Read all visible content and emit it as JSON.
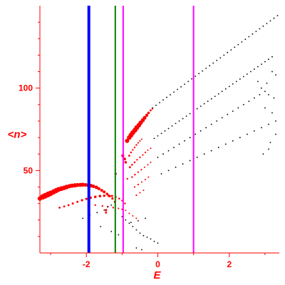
{
  "chart_data": {
    "type": "scatter",
    "title": "",
    "xlabel": "E",
    "ylabel": "<n>",
    "xlim": [
      -3.3,
      3.4
    ],
    "ylim": [
      0,
      150
    ],
    "x_ticks": [
      -2,
      0,
      2
    ],
    "y_ticks": [
      50,
      100
    ],
    "x_tick_labels": [
      "-2",
      "0",
      "2"
    ],
    "y_tick_labels": [
      "50",
      "100"
    ],
    "grid": false,
    "colors": {
      "axis": "#ff0000",
      "red_points": "#ff0000",
      "black_points": "#000000",
      "line_blue": "#0000ff",
      "line_green": "#008000",
      "line_magenta": "#ff00ff"
    },
    "vertical_lines": [
      {
        "x": -1.93,
        "color": "#0000ff",
        "width": 4
      },
      {
        "x": -1.19,
        "color": "#008000",
        "width": 2
      },
      {
        "x": -0.97,
        "color": "#ff00ff",
        "width": 2
      },
      {
        "x": 1.0,
        "color": "#ff00ff",
        "width": 2
      }
    ],
    "series": [
      {
        "style": "red",
        "points": [
          [
            -3.3,
            33.0,
            3.2
          ],
          [
            -3.22,
            34.0,
            3.8
          ],
          [
            -3.15,
            34.7,
            4.0
          ],
          [
            -3.07,
            35.5,
            4.0
          ],
          [
            -3.0,
            36.2,
            3.8
          ],
          [
            -2.92,
            37.0,
            3.6
          ],
          [
            -2.85,
            37.8,
            3.6
          ],
          [
            -2.78,
            38.5,
            3.4
          ],
          [
            -2.7,
            39.0,
            3.4
          ],
          [
            -2.62,
            39.5,
            3.2
          ],
          [
            -2.55,
            40.0,
            3.2
          ],
          [
            -2.47,
            40.5,
            3.0
          ],
          [
            -2.4,
            40.8,
            3.0
          ],
          [
            -2.32,
            41.0,
            3.0
          ],
          [
            -2.25,
            41.2,
            2.8
          ],
          [
            -2.17,
            41.3,
            2.8
          ],
          [
            -2.1,
            41.4,
            2.8
          ],
          [
            -2.02,
            41.3,
            2.6
          ],
          [
            -1.95,
            41.1,
            2.6
          ],
          [
            -1.87,
            40.8,
            2.6
          ],
          [
            -1.8,
            40.4,
            2.4
          ],
          [
            -1.72,
            39.8,
            2.4
          ],
          [
            -1.65,
            39.0,
            2.2
          ],
          [
            -1.57,
            38.0,
            2.0
          ],
          [
            -1.5,
            37.0,
            2.0
          ],
          [
            -1.42,
            35.8,
            1.8
          ],
          [
            -1.35,
            34.5,
            1.8
          ],
          [
            -1.27,
            33.0,
            1.6
          ],
          [
            -1.2,
            31.0,
            1.6
          ],
          [
            -2.75,
            27.5,
            1.4
          ],
          [
            -2.62,
            28.2,
            1.4
          ],
          [
            -2.5,
            29.0,
            1.4
          ],
          [
            -2.38,
            30.0,
            1.5
          ],
          [
            -2.25,
            31.0,
            1.5
          ],
          [
            -2.12,
            32.0,
            1.6
          ],
          [
            -2.0,
            32.8,
            1.6
          ],
          [
            -1.88,
            33.5,
            1.7
          ],
          [
            -1.75,
            34.0,
            1.8
          ],
          [
            -1.62,
            34.5,
            1.8
          ],
          [
            -1.5,
            34.7,
            1.7
          ],
          [
            -1.38,
            34.8,
            1.6
          ],
          [
            -1.28,
            34.6,
            1.5
          ],
          [
            -1.18,
            34.0,
            1.4
          ],
          [
            -1.08,
            33.0,
            1.3
          ],
          [
            -1.0,
            31.8,
            1.2
          ],
          [
            -0.92,
            30.0,
            1.2
          ],
          [
            -1.75,
            29.0,
            1.2
          ],
          [
            -1.55,
            28.5,
            1.2
          ],
          [
            -1.4,
            28.0,
            1.2
          ],
          [
            -1.25,
            27.5,
            1.2
          ],
          [
            -1.1,
            27.0,
            1.1
          ],
          [
            -1.0,
            26.5,
            1.1
          ],
          [
            -0.9,
            25.8,
            1.0
          ],
          [
            -0.8,
            24.0,
            1.0
          ],
          [
            -0.7,
            22.5,
            1.0
          ],
          [
            -0.6,
            21.0,
            1.0
          ],
          [
            -1.45,
            26.0,
            1.6
          ],
          [
            -1.45,
            24.5,
            1.4
          ],
          [
            -0.86,
            68.0,
            3.0
          ],
          [
            -0.8,
            70.0,
            3.2
          ],
          [
            -0.75,
            71.5,
            3.4
          ],
          [
            -0.7,
            73.0,
            3.4
          ],
          [
            -0.64,
            74.5,
            3.4
          ],
          [
            -0.59,
            76.0,
            3.4
          ],
          [
            -0.53,
            77.5,
            3.2
          ],
          [
            -0.48,
            79.0,
            3.0
          ],
          [
            -0.42,
            80.5,
            2.8
          ],
          [
            -0.37,
            82.0,
            2.6
          ],
          [
            -0.31,
            83.5,
            2.2
          ],
          [
            -0.26,
            85.0,
            1.8
          ],
          [
            -0.2,
            86.5,
            1.4
          ],
          [
            -0.15,
            87.5,
            1.2
          ],
          [
            -0.98,
            59.0,
            2.2
          ],
          [
            -0.93,
            57.0,
            2.0
          ],
          [
            -0.9,
            55.0,
            1.8
          ],
          [
            -0.8,
            59.0,
            1.4
          ],
          [
            -0.75,
            61.0,
            1.3
          ],
          [
            -0.7,
            62.5,
            1.2
          ],
          [
            -0.65,
            64.0,
            1.2
          ],
          [
            -0.6,
            65.5,
            1.2
          ],
          [
            -0.55,
            66.8,
            1.1
          ],
          [
            -0.5,
            68.0,
            1.1
          ],
          [
            -0.45,
            69.0,
            1.0
          ],
          [
            -0.78,
            52.0,
            1.4
          ],
          [
            -0.72,
            53.5,
            1.3
          ],
          [
            -0.65,
            55.0,
            1.3
          ],
          [
            -0.58,
            56.5,
            1.2
          ],
          [
            -0.5,
            58.0,
            1.2
          ],
          [
            -0.42,
            59.5,
            1.1
          ],
          [
            -0.35,
            61.0,
            1.1
          ],
          [
            -0.28,
            62.3,
            1.0
          ],
          [
            -0.2,
            63.5,
            1.0
          ],
          [
            -0.72,
            46.0,
            1.2
          ],
          [
            -0.64,
            47.5,
            1.2
          ],
          [
            -0.55,
            49.0,
            1.1
          ],
          [
            -0.46,
            50.5,
            1.1
          ],
          [
            -0.37,
            52.0,
            1.0
          ],
          [
            -0.28,
            53.5,
            1.0
          ],
          [
            -0.2,
            55.0,
            1.0
          ],
          [
            -0.65,
            40.0,
            1.1
          ],
          [
            -0.55,
            41.5,
            1.1
          ],
          [
            -0.45,
            43.0,
            1.0
          ],
          [
            -0.35,
            44.5,
            1.0
          ],
          [
            -0.26,
            46.0,
            1.0
          ],
          [
            -1.18,
            48.0,
            1.6
          ],
          [
            -0.85,
            45.0,
            1.2
          ],
          [
            -0.6,
            35.0,
            1.1
          ],
          [
            -0.5,
            36.5,
            1.0
          ],
          [
            -0.4,
            38.0,
            1.0
          ]
        ]
      },
      {
        "style": "black",
        "points": [
          [
            -0.15,
            88.0
          ],
          [
            -0.05,
            89.6
          ],
          [
            0.05,
            91.2
          ],
          [
            0.15,
            92.8
          ],
          [
            0.25,
            94.4
          ],
          [
            0.35,
            96.0
          ],
          [
            0.45,
            97.6
          ],
          [
            0.55,
            99.2
          ],
          [
            0.65,
            100.8
          ],
          [
            0.75,
            102.4
          ],
          [
            0.85,
            104.0
          ],
          [
            0.95,
            105.6
          ],
          [
            1.05,
            107.2
          ],
          [
            1.15,
            108.8
          ],
          [
            1.25,
            110.4
          ],
          [
            1.35,
            112.0
          ],
          [
            1.45,
            113.6
          ],
          [
            1.55,
            115.2
          ],
          [
            1.65,
            116.8
          ],
          [
            1.75,
            118.4
          ],
          [
            1.85,
            120.0
          ],
          [
            1.95,
            121.6
          ],
          [
            2.05,
            123.2
          ],
          [
            2.15,
            124.8
          ],
          [
            2.25,
            126.4
          ],
          [
            2.35,
            128.0
          ],
          [
            2.45,
            129.6
          ],
          [
            2.55,
            131.2
          ],
          [
            2.65,
            132.8
          ],
          [
            2.75,
            134.4
          ],
          [
            2.85,
            136.0
          ],
          [
            2.95,
            137.6
          ],
          [
            3.05,
            139.2
          ],
          [
            3.15,
            140.8
          ],
          [
            3.25,
            142.4
          ],
          [
            3.35,
            144.0
          ],
          [
            -0.1,
            69.5
          ],
          [
            0.0,
            71.0
          ],
          [
            0.1,
            72.5
          ],
          [
            0.2,
            74.0
          ],
          [
            0.3,
            75.5
          ],
          [
            0.4,
            77.0
          ],
          [
            0.5,
            78.5
          ],
          [
            0.6,
            80.0
          ],
          [
            0.7,
            81.5
          ],
          [
            0.8,
            83.0
          ],
          [
            0.9,
            84.5
          ],
          [
            1.0,
            86.0
          ],
          [
            1.1,
            87.5
          ],
          [
            1.2,
            89.0
          ],
          [
            1.3,
            90.5
          ],
          [
            1.4,
            92.0
          ],
          [
            1.5,
            93.5
          ],
          [
            1.6,
            95.0
          ],
          [
            1.7,
            96.5
          ],
          [
            1.8,
            98.0
          ],
          [
            1.9,
            99.5
          ],
          [
            2.0,
            101.0
          ],
          [
            2.1,
            102.5
          ],
          [
            2.2,
            104.0
          ],
          [
            2.3,
            105.5
          ],
          [
            2.4,
            107.0
          ],
          [
            2.5,
            108.5
          ],
          [
            2.6,
            110.0
          ],
          [
            2.7,
            111.5
          ],
          [
            2.8,
            113.0
          ],
          [
            2.9,
            114.5
          ],
          [
            3.0,
            116.0
          ],
          [
            3.1,
            117.5
          ],
          [
            3.2,
            119.0
          ],
          [
            0.0,
            58.0
          ],
          [
            0.15,
            60.0
          ],
          [
            0.3,
            62.0
          ],
          [
            0.45,
            64.0
          ],
          [
            0.6,
            66.0
          ],
          [
            0.75,
            68.0
          ],
          [
            0.9,
            70.0
          ],
          [
            1.05,
            72.0
          ],
          [
            1.2,
            74.0
          ],
          [
            1.35,
            76.0
          ],
          [
            1.5,
            78.0
          ],
          [
            1.65,
            80.0
          ],
          [
            1.8,
            82.0
          ],
          [
            1.95,
            84.0
          ],
          [
            2.1,
            86.0
          ],
          [
            2.25,
            88.0
          ],
          [
            2.4,
            90.0
          ],
          [
            2.55,
            92.0
          ],
          [
            2.7,
            94.0
          ],
          [
            2.85,
            96.0
          ],
          [
            3.0,
            98.0
          ],
          [
            0.1,
            48.0
          ],
          [
            0.3,
            50.0
          ],
          [
            0.5,
            52.0
          ],
          [
            0.7,
            54.0
          ],
          [
            0.9,
            56.0
          ],
          [
            1.1,
            58.0
          ],
          [
            1.3,
            60.0
          ],
          [
            1.5,
            62.0
          ],
          [
            1.7,
            64.0
          ],
          [
            1.9,
            66.0
          ],
          [
            2.1,
            68.0
          ],
          [
            2.3,
            70.0
          ],
          [
            2.5,
            72.0
          ],
          [
            2.7,
            74.0
          ],
          [
            2.9,
            76.0
          ],
          [
            3.1,
            78.0
          ],
          [
            3.3,
            80.0
          ],
          [
            3.2,
            110.0
          ],
          [
            3.3,
            108.0
          ],
          [
            2.9,
            100.0
          ],
          [
            3.1,
            96.0
          ],
          [
            3.25,
            94.0
          ],
          [
            2.8,
            104.0
          ],
          [
            3.05,
            103.0
          ],
          [
            3.15,
            67.0
          ],
          [
            3.3,
            72.0
          ],
          [
            3.0,
            88.0
          ],
          [
            3.2,
            85.0
          ],
          [
            2.95,
            60.0
          ],
          [
            3.1,
            63.0
          ],
          [
            -2.1,
            21.0
          ],
          [
            -1.9,
            23.0
          ],
          [
            -1.7,
            24.5
          ],
          [
            -1.5,
            26.0
          ],
          [
            -1.4,
            28.0
          ],
          [
            -1.3,
            29.0
          ],
          [
            -1.0,
            22.0
          ],
          [
            -0.9,
            20.0
          ],
          [
            -0.8,
            18.0
          ],
          [
            -0.7,
            16.0
          ],
          [
            -0.6,
            14.0
          ],
          [
            -0.5,
            12.0
          ],
          [
            -0.4,
            10.5
          ],
          [
            -0.3,
            9.5
          ],
          [
            -0.2,
            8.5
          ],
          [
            -0.1,
            7.0
          ],
          [
            0.0,
            6.0
          ],
          [
            -0.6,
            3.0
          ],
          [
            -0.45,
            2.0
          ],
          [
            -1.6,
            16.0
          ],
          [
            -1.3,
            13.0
          ],
          [
            -1.1,
            11.0
          ],
          [
            -0.75,
            18.5
          ],
          [
            -0.55,
            19.5
          ],
          [
            -0.35,
            21.0
          ]
        ]
      }
    ]
  }
}
